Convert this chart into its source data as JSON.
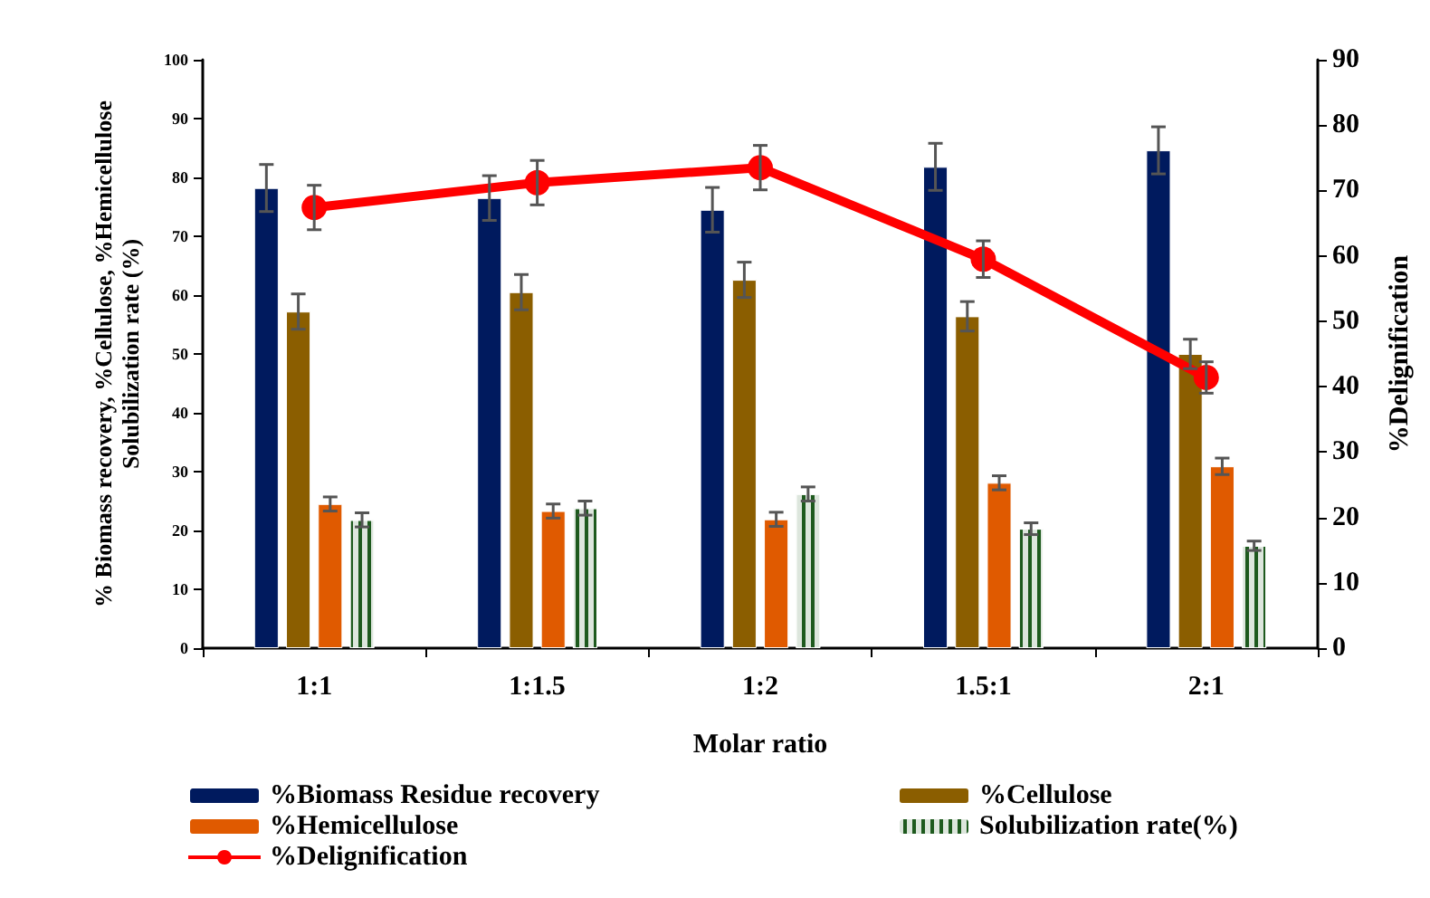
{
  "chart_data": {
    "type": "bar",
    "categories": [
      "1:1",
      "1:1.5",
      "1:2",
      "1.5:1",
      "2:1"
    ],
    "xlabel": "Molar ratio",
    "ylabel": "% Biomass recovery, %Cellulose, %Hemicellulose\nSolubilization rate (%)",
    "y2label": "%Delignification",
    "ylim": [
      0,
      100
    ],
    "yticks": [
      0,
      10,
      20,
      30,
      40,
      50,
      60,
      70,
      80,
      90,
      100
    ],
    "y2lim": [
      0,
      90
    ],
    "y2ticks": [
      0,
      10,
      20,
      30,
      40,
      50,
      60,
      70,
      80,
      90
    ],
    "grid": false,
    "legend": "bottom",
    "series": [
      {
        "name": "%Biomass Residue recovery",
        "color": "#001a5e",
        "values": [
          78.2,
          76.5,
          74.5,
          81.8,
          84.6
        ],
        "errors": [
          4,
          3.8,
          3.8,
          4,
          4
        ]
      },
      {
        "name": "%Cellulose",
        "color": "#8b5e00",
        "values": [
          57.2,
          60.5,
          62.6,
          56.4,
          50
        ],
        "errors": [
          3,
          3,
          3,
          2.5,
          2.5
        ]
      },
      {
        "name": "%Hemicellulose",
        "color": "#e05a00",
        "values": [
          24.5,
          23.3,
          21.9,
          28.1,
          30.9
        ],
        "errors": [
          1.2,
          1.2,
          1.2,
          1.2,
          1.4
        ]
      },
      {
        "name": "Solubilization rate(%)",
        "color": "#1e5a1e",
        "values": [
          21.8,
          23.8,
          26.2,
          20.3,
          17.4
        ],
        "errors": [
          1.2,
          1.2,
          1.2,
          1,
          0.8
        ]
      },
      {
        "name": "%Delignification",
        "type": "line",
        "axis": "y2",
        "color": "#ff0000",
        "marker": "circle",
        "values": [
          67.4,
          71.2,
          73.5,
          59.5,
          41.4
        ],
        "errors": [
          3.4,
          3.4,
          3.4,
          2.8,
          2.4
        ]
      }
    ]
  }
}
